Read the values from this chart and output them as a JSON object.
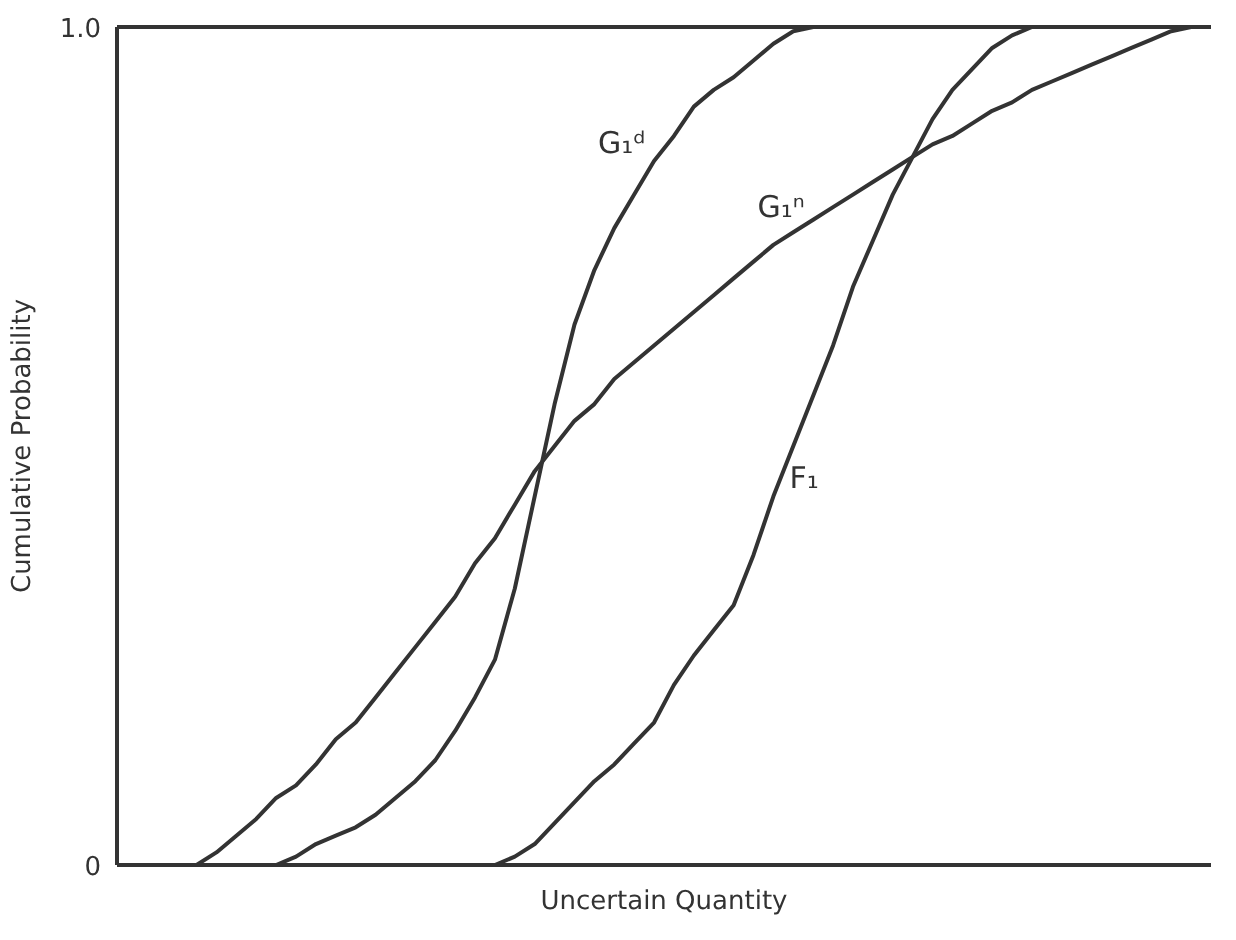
{
  "chart_data": {
    "type": "line",
    "xlabel": "Uncertain Quantity",
    "ylabel": "Cumulative Probability",
    "categories": [
      null,
      null,
      null,
      null,
      null,
      null,
      null,
      null,
      null,
      null,
      null,
      null,
      null,
      null,
      null,
      null,
      null,
      null,
      null,
      null,
      null,
      null,
      null,
      null,
      null,
      null,
      null,
      null,
      null,
      null,
      null,
      null,
      null,
      null,
      null,
      null,
      null,
      null,
      null,
      null,
      null,
      null,
      null,
      null,
      null,
      null,
      null,
      null,
      null,
      null,
      null,
      null,
      null,
      null,
      null,
      null
    ],
    "series": [
      {
        "name": "G₁ᵈ",
        "color": "#333333",
        "values": [
          null,
          null,
          null,
          null,
          null,
          null,
          null,
          null,
          0,
          0.01,
          0.025,
          0.035,
          0.045,
          0.06,
          0.08,
          0.1,
          0.125,
          0.16,
          0.2,
          0.245,
          0.33,
          0.44,
          0.55,
          0.645,
          0.71,
          0.76,
          0.8,
          0.84,
          0.87,
          0.905,
          0.925,
          0.94,
          0.96,
          0.98,
          0.995,
          1.0,
          null,
          null,
          null,
          null,
          null,
          null,
          null,
          null,
          null,
          null,
          null,
          null,
          null,
          null,
          null,
          null,
          null,
          null,
          null,
          null
        ]
      },
      {
        "name": "G₁ⁿ",
        "color": "#333333",
        "values": [
          null,
          null,
          null,
          null,
          0,
          0.015,
          0.035,
          0.055,
          0.08,
          0.095,
          0.12,
          0.15,
          0.17,
          0.2,
          0.23,
          0.26,
          0.29,
          0.32,
          0.36,
          0.39,
          0.43,
          0.47,
          0.5,
          0.53,
          0.55,
          0.58,
          0.6,
          0.62,
          0.64,
          0.66,
          0.68,
          0.7,
          0.72,
          0.74,
          0.755,
          0.77,
          0.785,
          0.8,
          0.815,
          0.83,
          0.845,
          0.86,
          0.87,
          0.885,
          0.9,
          0.91,
          0.925,
          0.935,
          0.945,
          0.955,
          0.965,
          0.975,
          0.985,
          0.995,
          1.0,
          null
        ]
      },
      {
        "name": "F₁",
        "color": "#333333",
        "values": [
          null,
          null,
          null,
          null,
          null,
          null,
          null,
          null,
          null,
          null,
          null,
          null,
          null,
          null,
          null,
          null,
          null,
          null,
          null,
          0,
          0.01,
          0.025,
          0.05,
          0.075,
          0.1,
          0.12,
          0.145,
          0.17,
          0.215,
          0.25,
          0.28,
          0.31,
          0.37,
          0.44,
          0.5,
          0.56,
          0.62,
          0.69,
          0.745,
          0.8,
          0.845,
          0.89,
          0.925,
          0.95,
          0.975,
          0.99,
          1.0,
          null,
          null,
          null,
          null,
          null,
          null,
          null,
          null,
          null
        ]
      }
    ],
    "ylim": [
      0,
      1
    ],
    "yticks": [
      0,
      {
        "value": 1,
        "label": "1.0"
      }
    ],
    "tick_labels": "y",
    "grid": false
  }
}
